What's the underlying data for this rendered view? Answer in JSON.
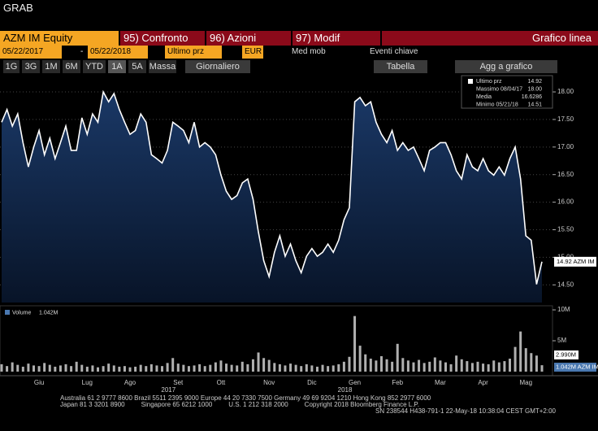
{
  "header": "GRAB",
  "toolbar": {
    "security": "AZM IM Equity",
    "compare": "95) Confronto",
    "actions": "96) Azioni",
    "edit": "97) Modif",
    "chart_kind": "Grafico linea",
    "start_date": "05/22/2017",
    "dash": "-",
    "end_date": "05/22/2018",
    "field": "Ultimo prz",
    "currency": "EUR",
    "moving_avg": "Med mob",
    "events": "Eventi chiave",
    "periods": [
      "1G",
      "3G",
      "1M",
      "6M",
      "YTD",
      "1A",
      "5A",
      "Massa"
    ],
    "frequency": "Giornaliero",
    "table": "Tabella",
    "add_to_chart": "Agg a grafico"
  },
  "chart_data": [
    {
      "type": "line",
      "categories": [
        null,
        null,
        null,
        null,
        null,
        null,
        null,
        "Giu",
        null,
        null,
        null,
        null,
        null,
        null,
        null,
        null,
        "Lug",
        null,
        null,
        null,
        null,
        null,
        null,
        null,
        "Ago",
        null,
        null,
        null,
        null,
        null,
        null,
        null,
        null,
        "Set",
        null,
        null,
        null,
        null,
        null,
        null,
        null,
        "Ott",
        null,
        null,
        null,
        null,
        null,
        null,
        null,
        null,
        "Nov",
        null,
        null,
        null,
        null,
        null,
        null,
        null,
        "Dic",
        null,
        null,
        null,
        null,
        null,
        null,
        null,
        "Gen",
        null,
        null,
        null,
        null,
        null,
        null,
        null,
        "Feb",
        null,
        null,
        null,
        null,
        null,
        null,
        null,
        "Mar",
        null,
        null,
        null,
        null,
        null,
        null,
        null,
        "Apr",
        null,
        null,
        null,
        null,
        null,
        null,
        null,
        "Mag",
        null,
        null,
        null
      ],
      "series": [
        {
          "name": "Ultimo prz",
          "color": "#ffffff",
          "values": [
            17.45,
            17.68,
            17.38,
            17.6,
            17.08,
            16.64,
            17.0,
            17.3,
            16.86,
            17.16,
            16.79,
            17.08,
            17.38,
            16.94,
            16.94,
            17.53,
            17.23,
            17.6,
            17.45,
            18.0,
            17.82,
            17.97,
            17.68,
            17.45,
            17.23,
            17.3,
            17.6,
            17.45,
            16.86,
            16.79,
            16.71,
            16.94,
            17.45,
            17.38,
            17.3,
            17.08,
            17.45,
            17.0,
            17.08,
            17.0,
            16.86,
            16.49,
            16.2,
            16.05,
            16.12,
            16.35,
            16.42,
            16.05,
            15.46,
            14.94,
            14.65,
            15.09,
            15.39,
            15.02,
            15.24,
            14.94,
            14.72,
            15.02,
            15.16,
            15.02,
            15.09,
            15.24,
            15.09,
            15.31,
            15.68,
            15.9,
            17.82,
            17.9,
            17.75,
            17.82,
            17.45,
            17.23,
            17.08,
            17.3,
            16.94,
            17.08,
            16.94,
            17.0,
            16.79,
            16.57,
            16.94,
            17.0,
            17.08,
            17.08,
            16.86,
            16.57,
            16.42,
            16.86,
            16.64,
            16.57,
            16.79,
            16.57,
            16.49,
            16.64,
            16.49,
            16.79,
            17.0,
            16.42,
            15.39,
            15.31,
            14.51,
            14.92
          ]
        }
      ],
      "ylim": [
        14.18,
        18.31
      ],
      "yticks": [
        {
          "value": 14.5,
          "label": "14.50"
        },
        {
          "value": 15,
          "label": "15.00"
        },
        {
          "value": 15.5,
          "label": "15.50"
        },
        {
          "value": 16,
          "label": "16.00"
        },
        {
          "value": 16.5,
          "label": "16.50"
        },
        {
          "value": 17,
          "label": "17.00"
        },
        {
          "value": 17.5,
          "label": "17.50"
        },
        {
          "value": 18,
          "label": "18.00"
        }
      ],
      "grid": true,
      "legend_box": [
        {
          "name": "Ultimo prz",
          "value": "14.92"
        },
        {
          "name": "Massimo 08/04/17",
          "value": "18.00"
        },
        {
          "name": "Media",
          "value": "16.6286"
        },
        {
          "name": "Minimo 05/21/18",
          "value": "14.51"
        }
      ],
      "last_price_tag": "14.92 AZM IM",
      "year_labels": [
        "2017",
        "2018"
      ]
    },
    {
      "type": "bar",
      "series": [
        {
          "name": "Volume",
          "color": "#b0b0b0",
          "values": [
            1.2,
            0.9,
            1.5,
            1.1,
            0.8,
            1.3,
            1.0,
            0.9,
            1.4,
            1.1,
            0.8,
            1.0,
            1.2,
            0.9,
            1.6,
            1.1,
            0.8,
            1.0,
            0.7,
            0.9,
            1.3,
            1.0,
            0.8,
            0.9,
            0.7,
            0.8,
            1.1,
            0.9,
            1.2,
            1.0,
            0.9,
            1.4,
            2.2,
            1.3,
            1.1,
            0.9,
            1.0,
            1.2,
            0.9,
            1.1,
            1.5,
            1.8,
            1.3,
            1.1,
            1.0,
            1.6,
            1.2,
            2.0,
            3.1,
            2.2,
            1.9,
            1.4,
            1.2,
            1.0,
            1.3,
            1.1,
            0.9,
            1.2,
            1.0,
            0.8,
            1.1,
            0.9,
            1.0,
            1.2,
            1.6,
            2.4,
            9.0,
            4.2,
            2.8,
            2.1,
            1.8,
            2.5,
            2.0,
            1.6,
            4.5,
            2.2,
            1.8,
            1.5,
            1.9,
            1.4,
            1.6,
            2.3,
            1.8,
            1.5,
            1.2,
            2.6,
            2.0,
            1.7,
            1.4,
            1.6,
            1.3,
            1.2,
            1.8,
            1.5,
            1.7,
            2.1,
            4.0,
            6.5,
            3.8,
            3.0,
            2.6,
            1.04
          ]
        }
      ],
      "ylim": [
        0,
        10.4
      ],
      "yticks": [
        {
          "value": 5,
          "label": "5M"
        },
        {
          "value": 10,
          "label": "10M"
        }
      ],
      "legend_value": "1.042M",
      "avg_tag": "2.990M",
      "last_tag": "1.042M AZM IM"
    }
  ],
  "footer": [
    "Australia 61 2 9777 8600 Brazil 5511 2395 9000 Europe 44 20 7330 7500 Germany 49 69 9204 1210 Hong Kong 852 2977 6000",
    "Japan 81 3 3201 8900         Singapore 65 6212 1000         U.S. 1 212 318 2000         Copyright 2018 Bloomberg Finance L.P.",
    "SN 238544 H438-791-1 22-May-18 10:38:04 CEST GMT+2:00"
  ]
}
